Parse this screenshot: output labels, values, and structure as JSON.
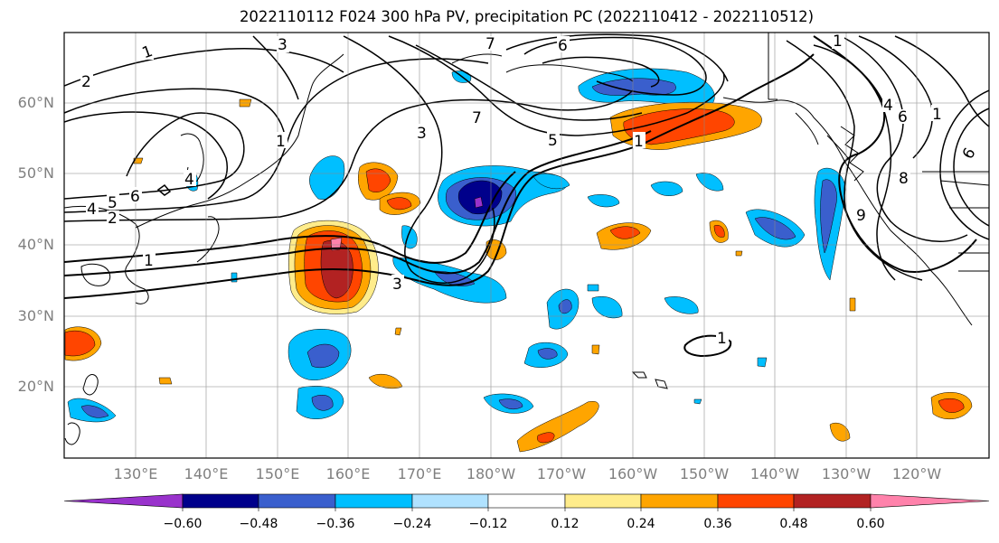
{
  "title": "2022110112 F024 300 hPa PV, precipitation PC (2022110412 - 2022110512)",
  "latitude_labels": [
    "60°N",
    "50°N",
    "40°N",
    "30°N",
    "20°N"
  ],
  "longitude_labels": [
    "130°E",
    "140°E",
    "150°E",
    "160°E",
    "170°E",
    "180°W",
    "170°W",
    "160°W",
    "150°W",
    "140°W",
    "130°W",
    "120°W"
  ],
  "colorbar": {
    "ticks": [
      "−0.60",
      "−0.48",
      "−0.36",
      "−0.24",
      "−0.12",
      "0.12",
      "0.24",
      "0.36",
      "0.48",
      "0.60"
    ],
    "colors": [
      "#9932cc",
      "#00008b",
      "#3a5fcd",
      "#00bfff",
      "#b0e2ff",
      "#ffffff",
      "#ffec8b",
      "#ffa500",
      "#ff4500",
      "#b22222",
      "#ff82ab"
    ]
  },
  "contour_labels": [
    "1",
    "3",
    "2",
    "6",
    "7",
    "6",
    "5",
    "7",
    "3",
    "1",
    "4",
    "5",
    "6",
    "4",
    "2",
    "1",
    "3",
    "1",
    "1",
    "4",
    "6",
    "1",
    "8",
    "9",
    "1"
  ]
}
